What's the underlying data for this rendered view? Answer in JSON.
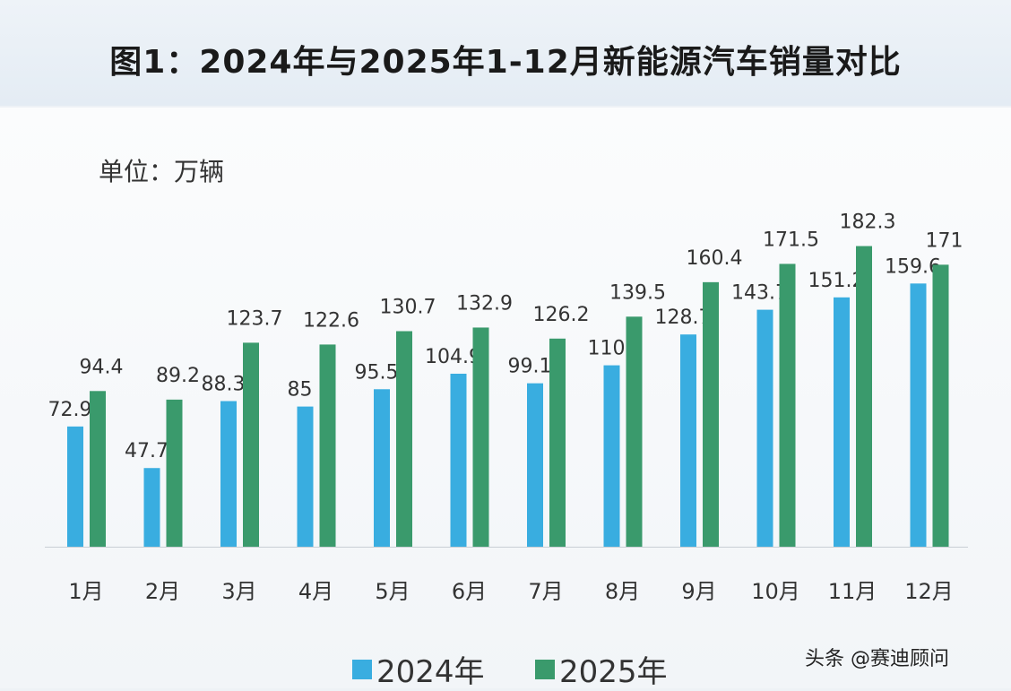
{
  "chart_data": {
    "type": "bar",
    "title": "图1：2024年与2025年1-12月新能源汽车销量对比",
    "unit_label": "单位：万辆",
    "categories": [
      "1月",
      "2月",
      "3月",
      "4月",
      "5月",
      "6月",
      "7月",
      "8月",
      "9月",
      "10月",
      "11月",
      "12月"
    ],
    "series": [
      {
        "name": "2024年",
        "color": "#39ade0",
        "values": [
          72.9,
          47.7,
          88.3,
          85,
          95.5,
          104.9,
          99.1,
          110,
          128.7,
          143.7,
          151.2,
          159.6
        ]
      },
      {
        "name": "2025年",
        "color": "#3a9a6c",
        "values": [
          94.4,
          89.2,
          123.7,
          122.6,
          130.7,
          132.9,
          126.2,
          139.5,
          160.4,
          171.5,
          182.3,
          171
        ]
      }
    ],
    "ylim": [
      0,
      190
    ],
    "grid": false,
    "legend": "bottom"
  },
  "watermark": "头条 @赛迪顾问"
}
